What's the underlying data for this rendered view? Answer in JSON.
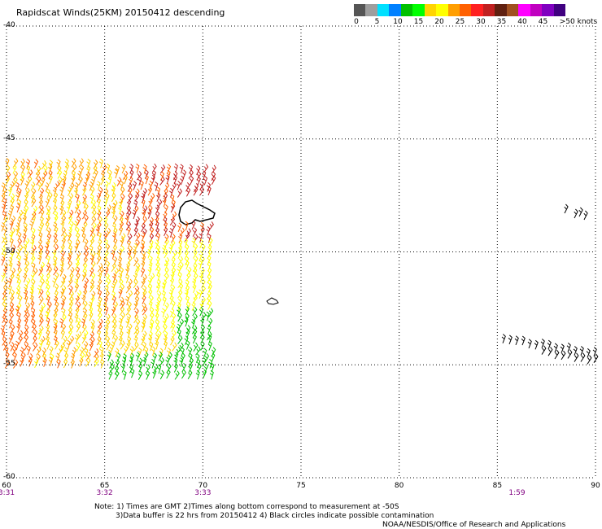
{
  "title": "Rapidscat Winds(25KM) 20150412 descending",
  "legend": {
    "unit_label": ">50 knots",
    "ticks": [
      "0",
      "5",
      "10",
      "15",
      "20",
      "25",
      "30",
      "35",
      "40",
      "45"
    ],
    "colors": [
      "#555555",
      "#9e9e9e",
      "#00e0ff",
      "#0080ff",
      "#00c000",
      "#00ff00",
      "#ffd400",
      "#ffff00",
      "#ff9e00",
      "#ff6000",
      "#ff2020",
      "#c02020",
      "#602010",
      "#a05020",
      "#ff00ff",
      "#c000c0",
      "#8000c0",
      "#400080"
    ]
  },
  "axes": {
    "x_ticks": [
      "60",
      "65",
      "70",
      "75",
      "80",
      "85",
      "90"
    ],
    "y_ticks": [
      "-40",
      "-45",
      "-50",
      "-55",
      "-60"
    ],
    "lon_range": [
      60,
      90
    ],
    "lat_range": [
      -60,
      -40
    ],
    "grid": true
  },
  "time_labels": [
    {
      "lon": 60,
      "text": "3:31"
    },
    {
      "lon": 65,
      "text": "3:32"
    },
    {
      "lon": 70,
      "text": "3:33"
    },
    {
      "lon": 86,
      "text": "1:59"
    }
  ],
  "notes": {
    "line1": "Note: 1) Times are GMT 2)Times along bottom correspond to measurement at -50S",
    "line2": "3)Data buffer is 22 hrs from 20150412 4) Black circles indicate possible contamination",
    "credit": "NOAA/NESDIS/Office of Research and Applications"
  }
}
